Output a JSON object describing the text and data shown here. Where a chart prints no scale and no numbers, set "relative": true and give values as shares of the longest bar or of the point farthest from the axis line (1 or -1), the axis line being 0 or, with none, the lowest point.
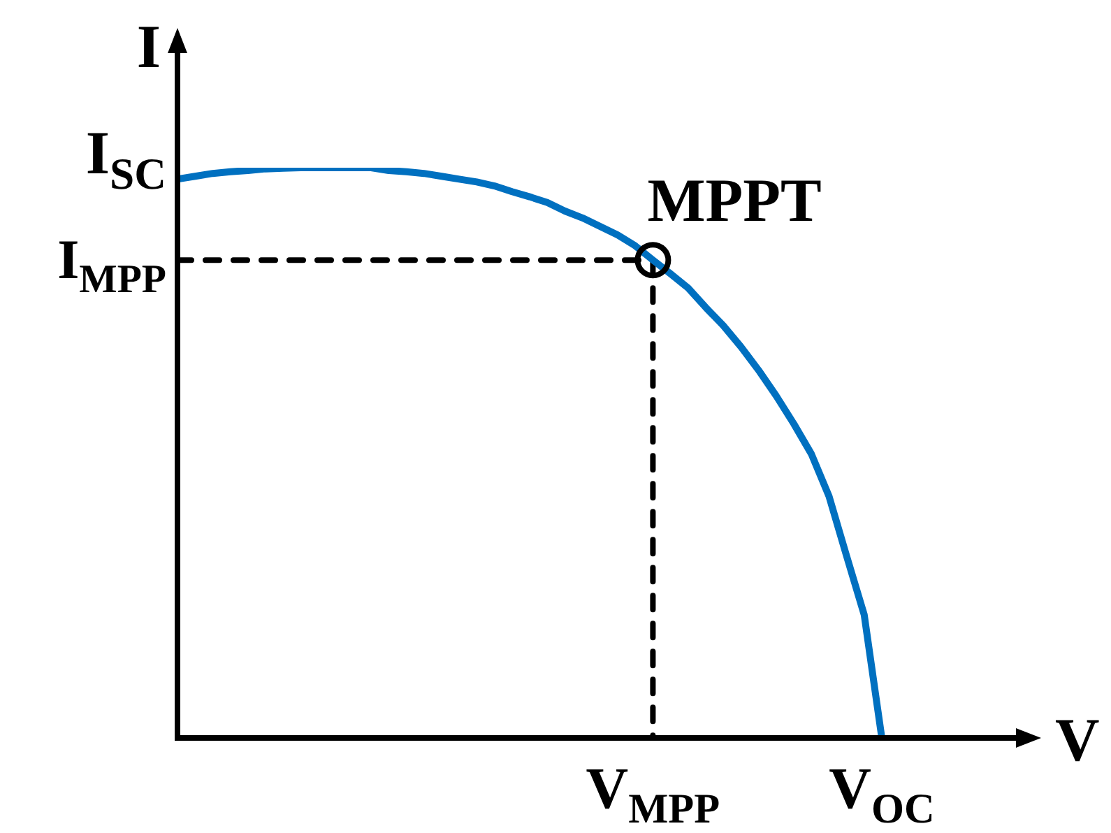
{
  "chart_data": {
    "type": "line",
    "relative": true,
    "xlabel": "V",
    "ylabel": "I",
    "legend": false,
    "categories": [
      null,
      null,
      null,
      null,
      null,
      null,
      null,
      null,
      null,
      null,
      null,
      null,
      null,
      null,
      null,
      null,
      null,
      null,
      null,
      null,
      null,
      null,
      null,
      null,
      null,
      null,
      null,
      null,
      null,
      null,
      null,
      null,
      null,
      null,
      null,
      null,
      null,
      null,
      null,
      null,
      null
    ],
    "series": [
      {
        "color": "#0070c0",
        "values": [
          0.98,
          0.985,
          0.99,
          0.993,
          0.995,
          0.998,
          0.999,
          1,
          1,
          1,
          1,
          1,
          0.995,
          0.993,
          0.99,
          0.985,
          0.98,
          0.975,
          0.968,
          0.958,
          0.949,
          0.939,
          0.924,
          0.912,
          0.897,
          0.882,
          0.863,
          0.838,
          0.814,
          0.789,
          0.755,
          0.723,
          0.686,
          0.645,
          0.6,
          0.551,
          0.498,
          0.424,
          0.319,
          0.216,
          0
        ]
      }
    ],
    "ref_lines": [
      {
        "axis": "y",
        "value": 0.838,
        "label": "I$_{MPP}$",
        "line_style": "dashed",
        "color": "#000000"
      }
    ],
    "annotations": [
      "I$_{SC}$",
      "MPPT",
      "V$_{MPP}$",
      "V$_{OC}$"
    ]
  }
}
